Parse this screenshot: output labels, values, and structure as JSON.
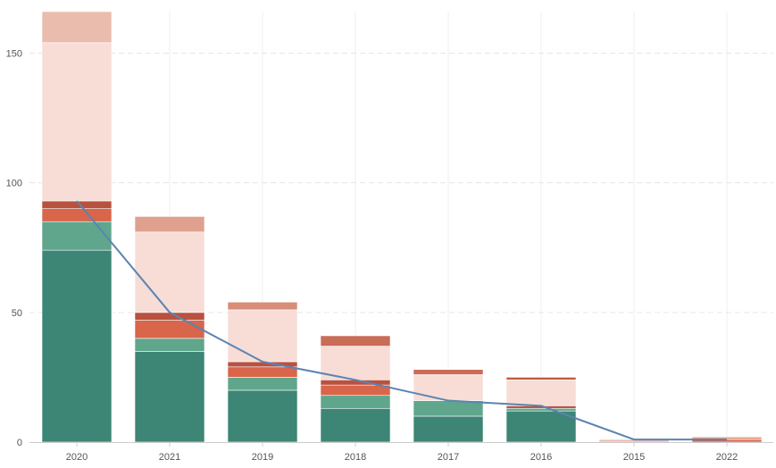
{
  "chart_data": {
    "type": "bar",
    "stacked": true,
    "categories": [
      "2020",
      "2021",
      "2019",
      "2018",
      "2017",
      "2016",
      "2015",
      "2022"
    ],
    "series": [
      {
        "color": "#3d8574",
        "values": [
          74,
          35,
          20,
          13,
          10,
          12,
          1,
          0
        ]
      },
      {
        "color": "#5fa68d",
        "values": [
          11,
          5,
          5,
          5,
          6,
          1,
          0,
          0
        ]
      },
      {
        "color": "#d9654a",
        "values": [
          5,
          7,
          4,
          4,
          0,
          0,
          0,
          1
        ]
      },
      {
        "color": "#b9513f",
        "values": [
          3,
          3,
          2,
          2,
          0,
          1,
          0,
          0
        ]
      },
      {
        "color": "#f7ddd6",
        "values": [
          61,
          31,
          20,
          13,
          10,
          10,
          0,
          0
        ]
      },
      {
        "color": "#eabcad",
        "values": [
          12,
          6,
          3,
          4,
          2,
          1,
          0,
          1
        ]
      }
    ],
    "topColors": [
      "#eabcad",
      "#e0a08f",
      "#d88d78",
      "#c96c58",
      "#c96c58",
      "#c0583f",
      "#eabcad",
      "#e8a08c"
    ],
    "line": {
      "color": "#5b84b1",
      "values": [
        93,
        50,
        31,
        24,
        16,
        14,
        1,
        1
      ]
    },
    "yticks": [
      0,
      50,
      100,
      150
    ],
    "ylim": [
      0,
      166
    ],
    "grid": true,
    "xlabel": "",
    "ylabel": ""
  }
}
